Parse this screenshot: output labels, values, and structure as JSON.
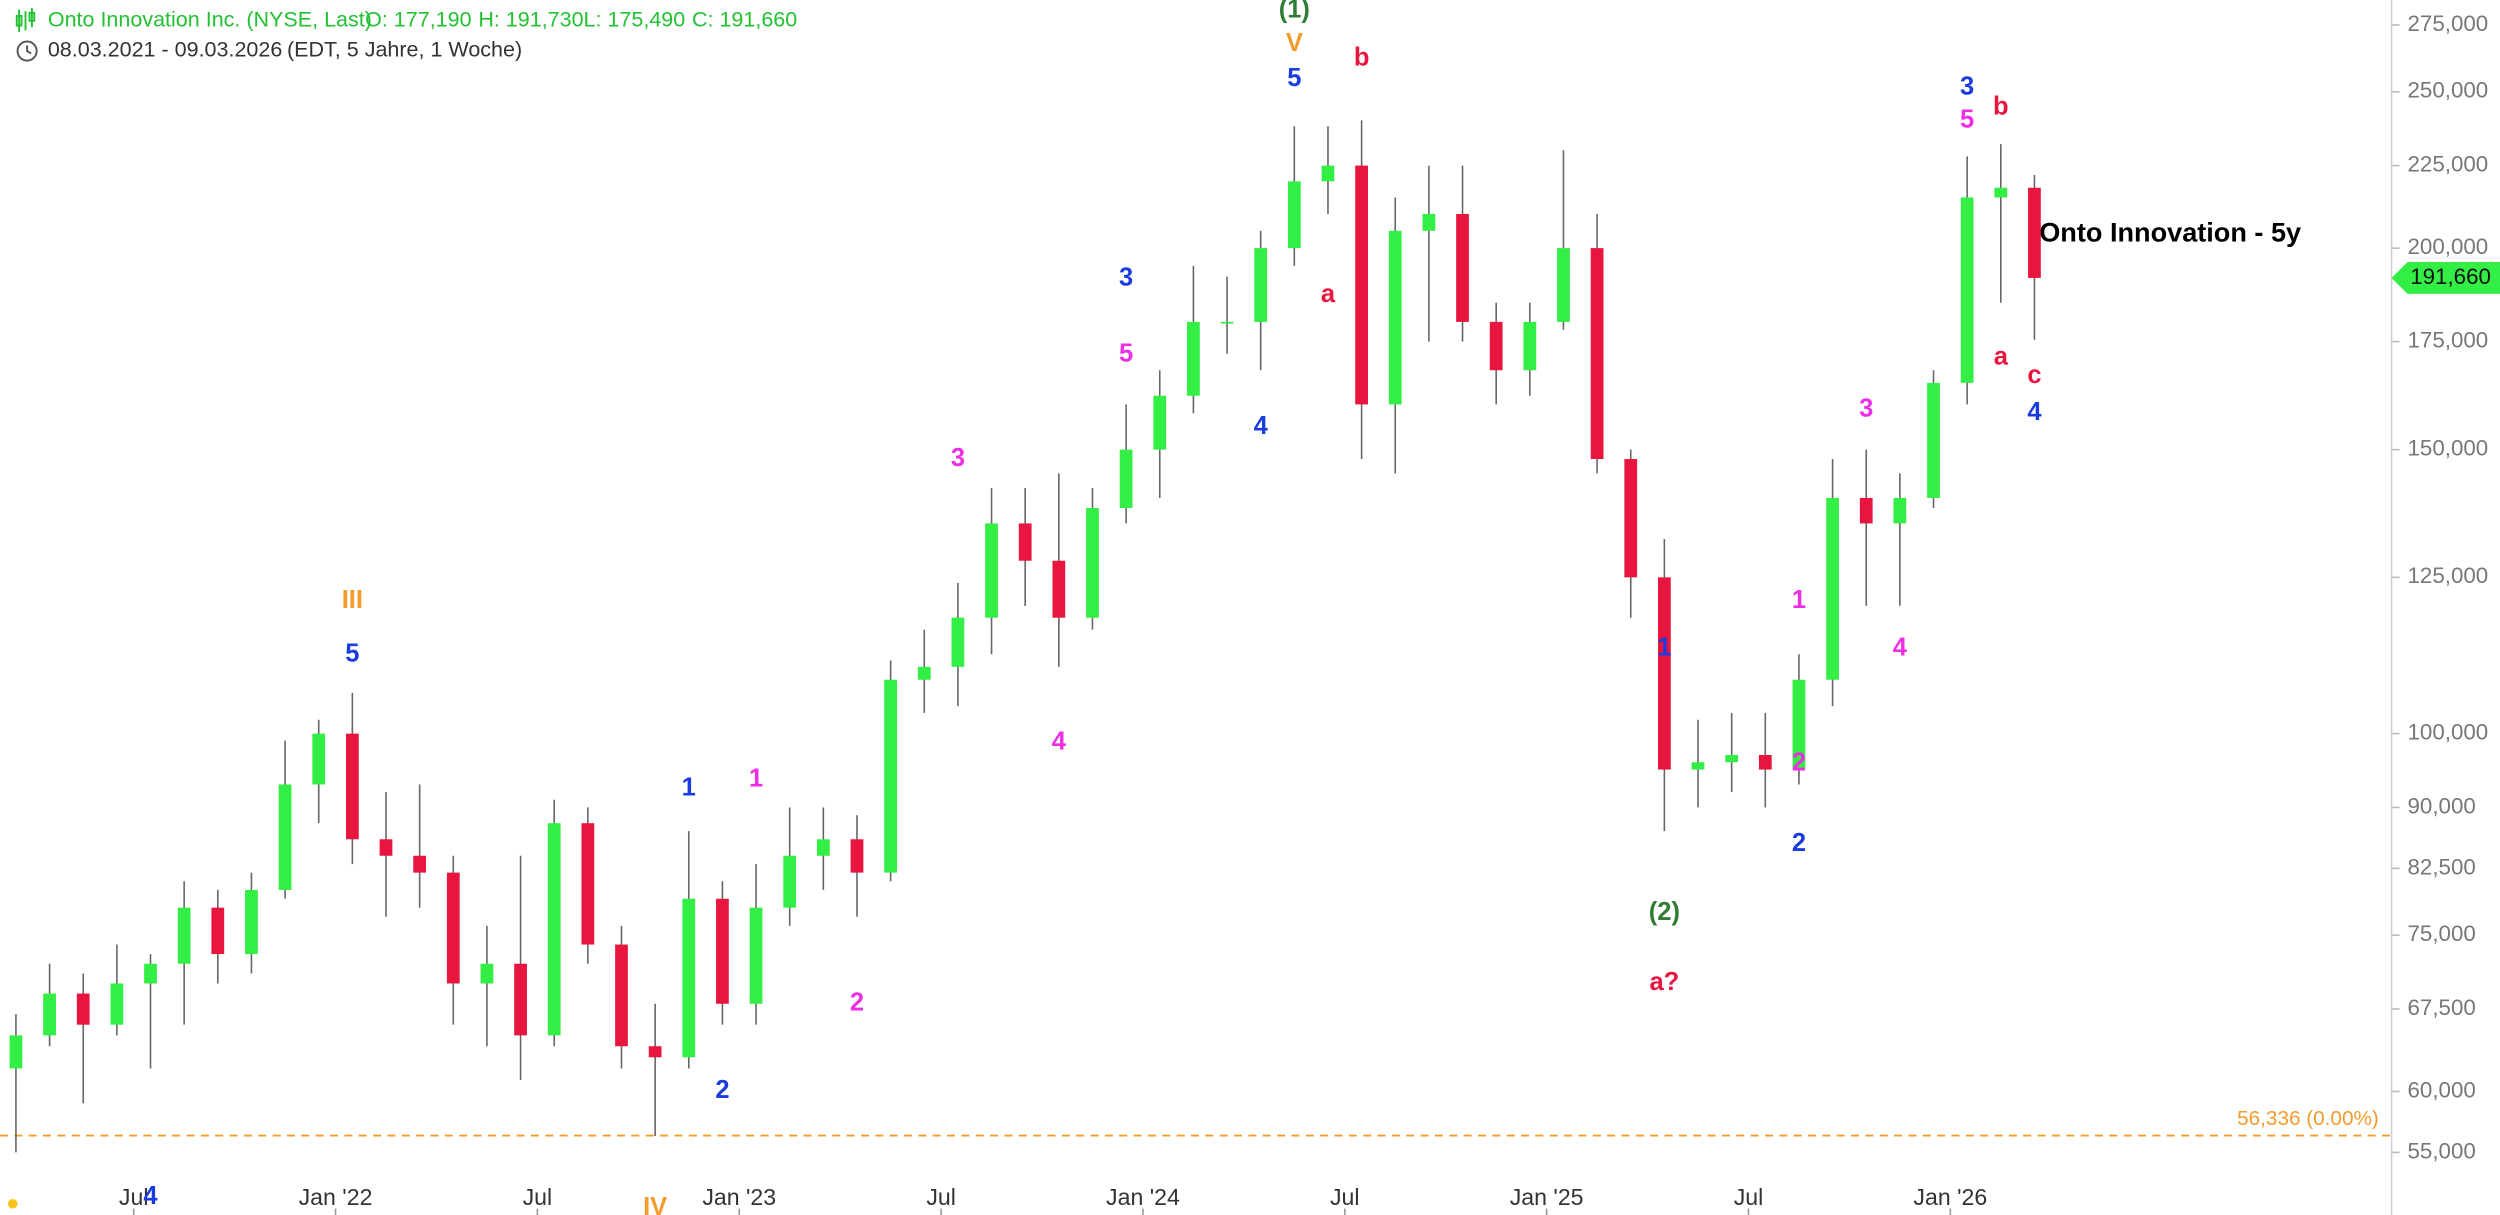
{
  "chart_data": {
    "type": "candlestick",
    "title": "Onto Innovation - 5y",
    "header": {
      "instrument": "Onto Innovation Inc. (NYSE, Last)",
      "ohlc": [
        "O: 177,190",
        "H: 191,730",
        "L: 175,490",
        "C: 191,660"
      ],
      "range": "08.03.2021 - 09.03.2026",
      "info": "(EDT, 5 Jahre, 1 Woche)"
    },
    "x": [
      "2021-03",
      "2021-04",
      "2021-05",
      "2021-06",
      "2021-07",
      "2021-08",
      "2021-09",
      "2021-10",
      "2021-11",
      "2021-12",
      "2022-01",
      "2022-02",
      "2022-03",
      "2022-04",
      "2022-05",
      "2022-06",
      "2022-07",
      "2022-08",
      "2022-09",
      "2022-10",
      "2022-11",
      "2022-12",
      "2023-01",
      "2023-02",
      "2023-03",
      "2023-04",
      "2023-05",
      "2023-06",
      "2023-07",
      "2023-08",
      "2023-09",
      "2023-10",
      "2023-11",
      "2023-12",
      "2024-01",
      "2024-02",
      "2024-03",
      "2024-04",
      "2024-05",
      "2024-06",
      "2024-07",
      "2024-08",
      "2024-09",
      "2024-10",
      "2024-11",
      "2024-12",
      "2025-01",
      "2025-02",
      "2025-03",
      "2025-04",
      "2025-05",
      "2025-06",
      "2025-07",
      "2025-08",
      "2025-09",
      "2025-10",
      "2025-11",
      "2025-12",
      "2026-01",
      "2026-02",
      "2026-03"
    ],
    "open": [
      62,
      65,
      69,
      66,
      70,
      72,
      78,
      73,
      80,
      93,
      100,
      86,
      84,
      82,
      70,
      72,
      65,
      88,
      74,
      64,
      63,
      79,
      68,
      78,
      84,
      86,
      82,
      108,
      110,
      118,
      135,
      128,
      118,
      138,
      150,
      162,
      180,
      180,
      200,
      220,
      225,
      160,
      205,
      210,
      180,
      168,
      180,
      200,
      148,
      125,
      95,
      96,
      97,
      95,
      108,
      140,
      135,
      140,
      165,
      215,
      218
    ],
    "high": [
      67,
      72,
      71,
      74,
      73,
      81,
      80,
      82,
      99,
      102,
      106,
      92,
      93,
      84,
      76,
      84,
      91,
      90,
      76,
      68,
      87,
      81,
      83,
      90,
      90,
      89,
      111,
      116,
      124,
      142,
      142,
      145,
      142,
      160,
      168,
      195,
      192,
      205,
      238,
      238,
      240,
      215,
      225,
      225,
      185,
      185,
      230,
      210,
      150,
      132,
      102,
      103,
      103,
      112,
      148,
      150,
      145,
      168,
      228,
      232,
      222
    ],
    "low": [
      55,
      64,
      59,
      65,
      62,
      66,
      70,
      71,
      79,
      88,
      83,
      77,
      78,
      66,
      64,
      61,
      64,
      72,
      62,
      56.3,
      62,
      66,
      66,
      76,
      80,
      77,
      81,
      103,
      104,
      112,
      120,
      110,
      116,
      135,
      140,
      158,
      172,
      168,
      195,
      210,
      148,
      145,
      175,
      175,
      160,
      162,
      178,
      145,
      118,
      87,
      90,
      92,
      90,
      93,
      104,
      120,
      120,
      138,
      160,
      185,
      175.49
    ],
    "close": [
      65,
      69,
      66,
      70,
      72,
      78,
      73,
      80,
      93,
      100,
      86,
      84,
      82,
      70,
      72,
      65,
      88,
      74,
      64,
      63,
      79,
      68,
      78,
      84,
      86,
      82,
      108,
      110,
      118,
      135,
      128,
      118,
      138,
      150,
      162,
      180,
      180,
      200,
      220,
      225,
      160,
      205,
      210,
      180,
      168,
      180,
      200,
      148,
      125,
      95,
      96,
      97,
      95,
      108,
      140,
      135,
      140,
      165,
      215,
      218,
      191.66
    ],
    "up_color": "#33ee44",
    "down_color": "#e8153f",
    "last_label": "191,660",
    "log_scale": true,
    "ylim": [
      50.3,
      285
    ],
    "yticks": [
      {
        "value": 55,
        "label": "55,000"
      },
      {
        "value": 60,
        "label": "60,000"
      },
      {
        "value": 67.5,
        "label": "67,500"
      },
      {
        "value": 75,
        "label": "75,000"
      },
      {
        "value": 82.5,
        "label": "82,500"
      },
      {
        "value": 90,
        "label": "90,000"
      },
      {
        "value": 100,
        "label": "100,000"
      },
      {
        "value": 125,
        "label": "125,000"
      },
      {
        "value": 150,
        "label": "150,000"
      },
      {
        "value": 175,
        "label": "175,000"
      },
      {
        "value": 200,
        "label": "200,000"
      },
      {
        "value": 225,
        "label": "225,000"
      },
      {
        "value": 250,
        "label": "250,000"
      },
      {
        "value": 275,
        "label": "275,000"
      }
    ],
    "xticks": [
      {
        "value": "2021-07",
        "label": "Jul"
      },
      {
        "value": "2022-01",
        "label": "Jan '22"
      },
      {
        "value": "2022-07",
        "label": "Jul"
      },
      {
        "value": "2023-01",
        "label": "Jan '23"
      },
      {
        "value": "2023-07",
        "label": "Jul"
      },
      {
        "value": "2024-01",
        "label": "Jan '24"
      },
      {
        "value": "2024-07",
        "label": "Jul"
      },
      {
        "value": "2025-01",
        "label": "Jan '25"
      },
      {
        "value": "2025-07",
        "label": "Jul"
      },
      {
        "value": "2026-01",
        "label": "Jan '26"
      }
    ],
    "support": {
      "value": 56.336,
      "label": "56,336 (0.00%)",
      "color": "#f39c2c"
    },
    "annotations": [
      {
        "text": "4",
        "color": "#1a3be0",
        "x": "2021-07",
        "y": 51.6
      },
      {
        "text": "III",
        "color": "#f39c2c",
        "x": "2022-01",
        "y": 120.8
      },
      {
        "text": "5",
        "color": "#1a3be0",
        "x": "2022-01",
        "y": 111.9
      },
      {
        "text": "IV",
        "color": "#f39c2c",
        "x": "2022-10",
        "y": 50.8
      },
      {
        "text": "1",
        "color": "#1a3be0",
        "x": "2022-11",
        "y": 92.4
      },
      {
        "text": "2",
        "color": "#1a3be0",
        "x": "2022-12",
        "y": 60
      },
      {
        "text": "1",
        "color": "#ee2ee5",
        "x": "2023-01",
        "y": 93.6
      },
      {
        "text": "2",
        "color": "#ee2ee5",
        "x": "2023-04",
        "y": 68
      },
      {
        "text": "3",
        "color": "#ee2ee5",
        "x": "2023-07",
        "y": 148
      },
      {
        "text": "4",
        "color": "#ee2ee5",
        "x": "2023-10",
        "y": 98.7
      },
      {
        "text": "5",
        "color": "#ee2ee5",
        "x": "2023-12",
        "y": 171.7
      },
      {
        "text": "3",
        "color": "#1a3be0",
        "x": "2023-12",
        "y": 191.4
      },
      {
        "text": "4",
        "color": "#1a3be0",
        "x": "2024-04",
        "y": 154.9
      },
      {
        "text": "5",
        "color": "#1a3be0",
        "x": "2024-05",
        "y": 254.5
      },
      {
        "text": "V",
        "color": "#f39c2c",
        "x": "2024-05",
        "y": 267.5
      },
      {
        "text": "(1)",
        "color": "#2e7d32",
        "x": "2024-05",
        "y": 280.6
      },
      {
        "text": "a",
        "color": "#e8153f",
        "x": "2024-06",
        "y": 187
      },
      {
        "text": "b",
        "color": "#e8153f",
        "x": "2024-07",
        "y": 262
      },
      {
        "text": "(2)",
        "color": "#2e7d32",
        "x": "2025-04",
        "y": 77.4
      },
      {
        "text": "a?",
        "color": "#e8153f",
        "x": "2025-04",
        "y": 70
      },
      {
        "text": "1",
        "color": "#1a3be0",
        "x": "2025-04",
        "y": 112.9
      },
      {
        "text": "2",
        "color": "#1a3be0",
        "x": "2025-08",
        "y": 85.4
      },
      {
        "text": "1",
        "color": "#ee2ee5",
        "x": "2025-08",
        "y": 120.8
      },
      {
        "text": "2",
        "color": "#ee2ee5",
        "x": "2025-08",
        "y": 95.8
      },
      {
        "text": "3",
        "color": "#ee2ee5",
        "x": "2025-10",
        "y": 158.8
      },
      {
        "text": "4",
        "color": "#ee2ee5",
        "x": "2025-11",
        "y": 112.9
      },
      {
        "text": "3",
        "color": "#1a3be0",
        "x": "2026-01",
        "y": 251.5
      },
      {
        "text": "5",
        "color": "#ee2ee5",
        "x": "2026-01",
        "y": 239.9
      },
      {
        "text": "a",
        "color": "#e8153f",
        "x": "2026-02",
        "y": 171
      },
      {
        "text": "b",
        "color": "#e8153f",
        "x": "2026-02",
        "y": 244.4
      },
      {
        "text": "c",
        "color": "#e8153f",
        "x": "2026-03",
        "y": 166.6
      },
      {
        "text": "4",
        "color": "#1a3be0",
        "x": "2026-03",
        "y": 158
      }
    ]
  }
}
